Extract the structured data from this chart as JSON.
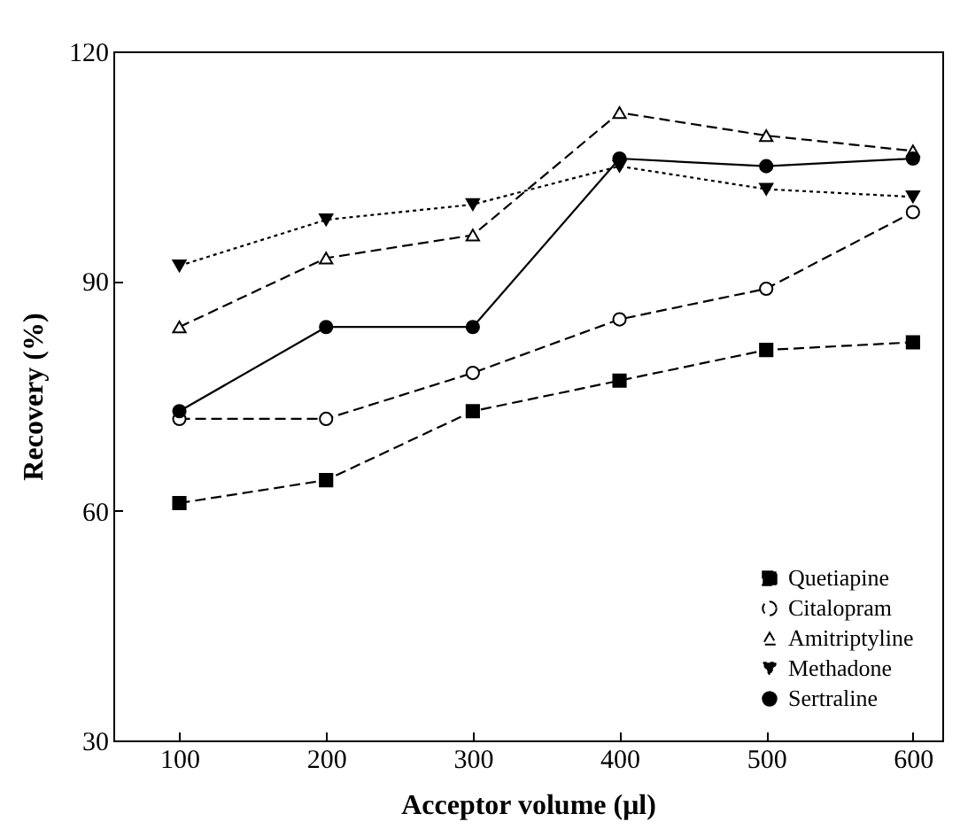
{
  "chart_data": {
    "type": "line",
    "xlabel": "Acceptor volume (μl)",
    "ylabel": "Recovery (%)",
    "x": [
      100,
      200,
      300,
      400,
      500,
      600
    ],
    "xlim": [
      55,
      620
    ],
    "xticks": [
      100,
      200,
      300,
      400,
      500,
      600
    ],
    "ylim": [
      30,
      120
    ],
    "yticks": [
      30,
      60,
      90,
      120
    ],
    "legend": "bottom right",
    "grid": false,
    "series": [
      {
        "name": "Quetiapine",
        "color": "#000000",
        "marker": "square",
        "line_style": "dashed",
        "values": [
          61,
          64,
          73,
          77,
          81,
          82
        ]
      },
      {
        "name": "Citalopram",
        "color": "#000000",
        "marker": "circle",
        "line_style": "dashed",
        "values": [
          72,
          72,
          78,
          85,
          89,
          99
        ]
      },
      {
        "name": "Amitriptyline",
        "color": "#000000",
        "marker": "triangle",
        "line_style": "dashed",
        "values": [
          84,
          93,
          96,
          112,
          109,
          107
        ]
      },
      {
        "name": "Methadone",
        "color": "#000000",
        "marker": "triangle-down",
        "line_style": "dotted",
        "values": [
          92,
          98,
          100,
          105,
          102,
          101
        ]
      },
      {
        "name": "Sertraline",
        "color": "#000000",
        "marker": "circle",
        "line_style": "solid",
        "values": [
          73,
          84,
          84,
          106,
          105,
          106
        ]
      }
    ]
  }
}
